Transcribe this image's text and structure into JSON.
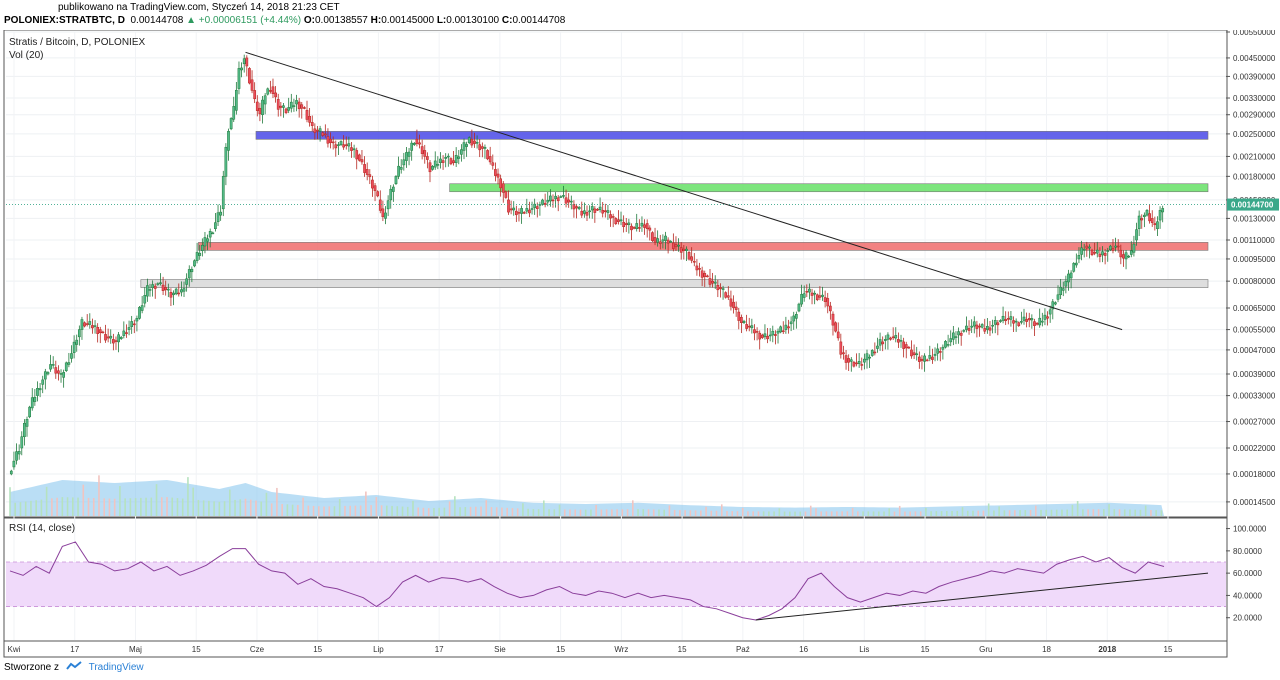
{
  "header": {
    "published": "publikowano na TradingView.com, Styczeń 14, 2018 21:23 CET",
    "symbol": "POLONIEX:STRATBTC, D",
    "last": "0.00144708",
    "change": "▲ +0.00006151 (+4.44%)",
    "o_label": "O:",
    "o_value": "0.00138557",
    "h_label": "H:",
    "h_value": "0.00145000",
    "l_label": "L:",
    "l_value": "0.00130100",
    "c_label": "C:",
    "c_value": "0.00144708"
  },
  "footer": {
    "created_by": "Stworzone z",
    "brand": "TradingView"
  },
  "chart_data": {
    "type": "candlestick",
    "title": "Stratis / Bitcoin, D, POLONIEX",
    "volume_label": "Vol (20)",
    "rsi_label": "RSI (14, close)",
    "last_price_label": "0.00144700",
    "scale": "log",
    "ylim": [
      0.00013,
      0.0055
    ],
    "price_ticks": [
      "0.00550000",
      "0.00450000",
      "0.00390000",
      "0.00330000",
      "0.00290000",
      "0.00250000",
      "0.00210000",
      "0.00180000",
      "0.00150000",
      "0.00130000",
      "0.00110000",
      "0.00095000",
      "0.00080000",
      "0.00065000",
      "0.00055000",
      "0.00047000",
      "0.00039000",
      "0.00033000",
      "0.00027000",
      "0.00022000",
      "0.00018000",
      "0.00014500"
    ],
    "rsi_ticks": [
      "100.0000",
      "80.0000",
      "60.0000",
      "40.0000",
      "20.0000"
    ],
    "rsi_band": [
      30,
      70
    ],
    "x_labels": [
      "Kwi",
      "17",
      "Maj",
      "15",
      "Cze",
      "15",
      "Lip",
      "17",
      "Sie",
      "15",
      "Wrz",
      "15",
      "Paź",
      "16",
      "Lis",
      "15",
      "Gru",
      "18",
      "2018",
      "15"
    ],
    "price_path": [
      [
        0,
        0.00018
      ],
      [
        4,
        0.00022
      ],
      [
        8,
        0.0003
      ],
      [
        12,
        0.00036
      ],
      [
        16,
        0.00042
      ],
      [
        20,
        0.00038
      ],
      [
        24,
        0.00046
      ],
      [
        28,
        0.00058
      ],
      [
        33,
        0.00056
      ],
      [
        37,
        0.00052
      ],
      [
        41,
        0.0005
      ],
      [
        45,
        0.00055
      ],
      [
        49,
        0.0006
      ],
      [
        53,
        0.00075
      ],
      [
        57,
        0.00079
      ],
      [
        62,
        0.00072
      ],
      [
        66,
        0.00074
      ],
      [
        70,
        0.0009
      ],
      [
        74,
        0.00105
      ],
      [
        78,
        0.0012
      ],
      [
        81,
        0.0014
      ],
      [
        84,
        0.0026
      ],
      [
        86,
        0.003
      ],
      [
        88,
        0.0041
      ],
      [
        90,
        0.0045
      ],
      [
        92,
        0.0038
      ],
      [
        94,
        0.0032
      ],
      [
        96,
        0.0029
      ],
      [
        98,
        0.0034
      ],
      [
        100,
        0.0036
      ],
      [
        103,
        0.0031
      ],
      [
        106,
        0.003
      ],
      [
        110,
        0.0032
      ],
      [
        113,
        0.003
      ],
      [
        116,
        0.0026
      ],
      [
        120,
        0.0025
      ],
      [
        124,
        0.0023
      ],
      [
        128,
        0.0023
      ],
      [
        132,
        0.0022
      ],
      [
        136,
        0.0019
      ],
      [
        140,
        0.0016
      ],
      [
        143,
        0.0013
      ],
      [
        146,
        0.0016
      ],
      [
        149,
        0.0019
      ],
      [
        152,
        0.0021
      ],
      [
        155,
        0.0024
      ],
      [
        158,
        0.0022
      ],
      [
        161,
        0.0019
      ],
      [
        164,
        0.002
      ],
      [
        167,
        0.0021
      ],
      [
        170,
        0.002
      ],
      [
        173,
        0.0022
      ],
      [
        176,
        0.0024
      ],
      [
        179,
        0.0023
      ],
      [
        182,
        0.0022
      ],
      [
        185,
        0.0019
      ],
      [
        188,
        0.0017
      ],
      [
        191,
        0.0014
      ],
      [
        195,
        0.00135
      ],
      [
        199,
        0.0014
      ],
      [
        203,
        0.00145
      ],
      [
        207,
        0.0015
      ],
      [
        211,
        0.00155
      ],
      [
        215,
        0.00145
      ],
      [
        219,
        0.00135
      ],
      [
        223,
        0.0014
      ],
      [
        227,
        0.00138
      ],
      [
        231,
        0.0013
      ],
      [
        235,
        0.00125
      ],
      [
        239,
        0.0012
      ],
      [
        243,
        0.00125
      ],
      [
        247,
        0.00108
      ],
      [
        251,
        0.0011
      ],
      [
        255,
        0.00105
      ],
      [
        259,
        0.001
      ],
      [
        262,
        0.0009
      ],
      [
        265,
        0.00085
      ],
      [
        268,
        0.0008
      ],
      [
        272,
        0.00075
      ],
      [
        276,
        0.00068
      ],
      [
        280,
        0.00058
      ],
      [
        284,
        0.00055
      ],
      [
        288,
        0.00052
      ],
      [
        292,
        0.00053
      ],
      [
        296,
        0.00055
      ],
      [
        300,
        0.0006
      ],
      [
        304,
        0.00074
      ],
      [
        308,
        0.00072
      ],
      [
        312,
        0.0007
      ],
      [
        315,
        0.00058
      ],
      [
        318,
        0.00046
      ],
      [
        321,
        0.00043
      ],
      [
        325,
        0.00042
      ],
      [
        329,
        0.00045
      ],
      [
        333,
        0.0005
      ],
      [
        337,
        0.00052
      ],
      [
        341,
        0.0005
      ],
      [
        345,
        0.00046
      ],
      [
        349,
        0.00043
      ],
      [
        353,
        0.00045
      ],
      [
        357,
        0.00048
      ],
      [
        361,
        0.00052
      ],
      [
        365,
        0.00055
      ],
      [
        369,
        0.00057
      ],
      [
        373,
        0.00055
      ],
      [
        377,
        0.00058
      ],
      [
        381,
        0.0006
      ],
      [
        385,
        0.00058
      ],
      [
        389,
        0.0006
      ],
      [
        393,
        0.00057
      ],
      [
        397,
        0.00062
      ],
      [
        401,
        0.00072
      ],
      [
        405,
        0.00082
      ],
      [
        408,
        0.00095
      ],
      [
        411,
        0.00105
      ],
      [
        414,
        0.001
      ],
      [
        417,
        0.00098
      ],
      [
        420,
        0.00102
      ],
      [
        423,
        0.00105
      ],
      [
        426,
        0.00095
      ],
      [
        429,
        0.001
      ],
      [
        432,
        0.0013
      ],
      [
        435,
        0.00135
      ],
      [
        438,
        0.0012
      ],
      [
        441,
        0.00145
      ]
    ],
    "volume_path": [
      [
        0,
        0.4
      ],
      [
        20,
        0.6
      ],
      [
        40,
        0.55
      ],
      [
        60,
        0.6
      ],
      [
        80,
        0.45
      ],
      [
        90,
        0.55
      ],
      [
        100,
        0.4
      ],
      [
        120,
        0.3
      ],
      [
        140,
        0.35
      ],
      [
        160,
        0.25
      ],
      [
        180,
        0.3
      ],
      [
        200,
        0.22
      ],
      [
        220,
        0.2
      ],
      [
        240,
        0.22
      ],
      [
        260,
        0.18
      ],
      [
        280,
        0.15
      ],
      [
        300,
        0.14
      ],
      [
        320,
        0.15
      ],
      [
        340,
        0.14
      ],
      [
        360,
        0.16
      ],
      [
        380,
        0.18
      ],
      [
        400,
        0.2
      ],
      [
        420,
        0.22
      ],
      [
        441,
        0.18
      ]
    ],
    "rsi": [
      [
        0,
        62
      ],
      [
        5,
        58
      ],
      [
        10,
        66
      ],
      [
        15,
        60
      ],
      [
        20,
        84
      ],
      [
        25,
        88
      ],
      [
        30,
        70
      ],
      [
        35,
        68
      ],
      [
        40,
        62
      ],
      [
        45,
        64
      ],
      [
        50,
        70
      ],
      [
        55,
        62
      ],
      [
        60,
        66
      ],
      [
        65,
        58
      ],
      [
        70,
        62
      ],
      [
        75,
        67
      ],
      [
        80,
        75
      ],
      [
        85,
        82
      ],
      [
        90,
        82
      ],
      [
        95,
        68
      ],
      [
        100,
        62
      ],
      [
        105,
        60
      ],
      [
        110,
        50
      ],
      [
        115,
        55
      ],
      [
        120,
        48
      ],
      [
        125,
        46
      ],
      [
        130,
        42
      ],
      [
        135,
        38
      ],
      [
        140,
        30
      ],
      [
        145,
        38
      ],
      [
        150,
        52
      ],
      [
        155,
        58
      ],
      [
        160,
        52
      ],
      [
        165,
        56
      ],
      [
        170,
        55
      ],
      [
        175,
        52
      ],
      [
        180,
        55
      ],
      [
        185,
        48
      ],
      [
        190,
        42
      ],
      [
        195,
        38
      ],
      [
        200,
        40
      ],
      [
        205,
        45
      ],
      [
        210,
        48
      ],
      [
        215,
        42
      ],
      [
        220,
        40
      ],
      [
        225,
        44
      ],
      [
        230,
        42
      ],
      [
        235,
        38
      ],
      [
        240,
        42
      ],
      [
        245,
        38
      ],
      [
        250,
        40
      ],
      [
        255,
        38
      ],
      [
        260,
        36
      ],
      [
        265,
        30
      ],
      [
        270,
        28
      ],
      [
        275,
        24
      ],
      [
        280,
        20
      ],
      [
        285,
        18
      ],
      [
        290,
        22
      ],
      [
        295,
        28
      ],
      [
        300,
        38
      ],
      [
        305,
        55
      ],
      [
        310,
        60
      ],
      [
        315,
        48
      ],
      [
        320,
        38
      ],
      [
        325,
        34
      ],
      [
        330,
        38
      ],
      [
        335,
        42
      ],
      [
        340,
        40
      ],
      [
        345,
        44
      ],
      [
        350,
        42
      ],
      [
        355,
        48
      ],
      [
        360,
        52
      ],
      [
        365,
        55
      ],
      [
        370,
        58
      ],
      [
        375,
        62
      ],
      [
        380,
        60
      ],
      [
        385,
        64
      ],
      [
        390,
        62
      ],
      [
        395,
        60
      ],
      [
        400,
        68
      ],
      [
        405,
        72
      ],
      [
        410,
        75
      ],
      [
        415,
        70
      ],
      [
        420,
        74
      ],
      [
        425,
        65
      ],
      [
        430,
        60
      ],
      [
        435,
        70
      ],
      [
        441,
        66
      ]
    ],
    "trendline_price": {
      "from": [
        90,
        0.0047
      ],
      "to": [
        425,
        0.00055
      ]
    },
    "trendline_rsi": {
      "from": [
        285,
        18
      ],
      "to": [
        441,
        60
      ]
    },
    "zones": [
      {
        "name": "blue",
        "low": 0.0024,
        "high": 0.00255,
        "from": 94,
        "to": 441,
        "color": "#4a4ae8"
      },
      {
        "name": "green",
        "low": 0.0016,
        "high": 0.0017,
        "from": 168,
        "to": 441,
        "color": "#66e066"
      },
      {
        "name": "red",
        "low": 0.00103,
        "high": 0.00108,
        "from": 72,
        "to": 441,
        "color": "#f06c6c"
      },
      {
        "name": "grey",
        "low": 0.00077,
        "high": 0.00081,
        "from": 50,
        "to": 441,
        "color": "#d8d8d8"
      }
    ]
  }
}
